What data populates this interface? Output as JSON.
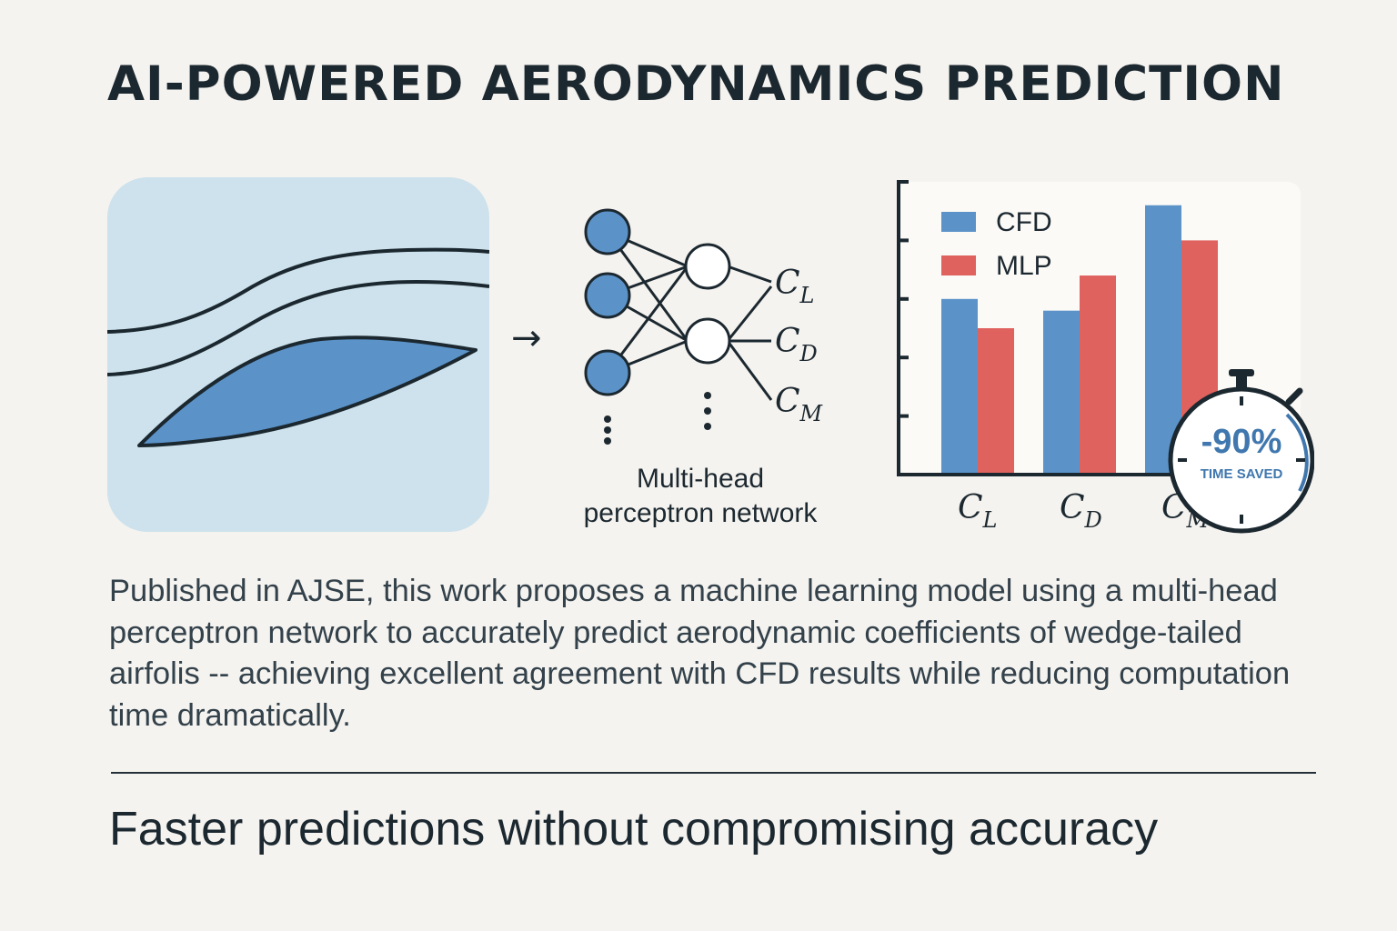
{
  "title": "AI-POWERED AERODYNAMICS PREDICTION",
  "icons": {
    "airfoil": "airfoil-streamlines-icon",
    "arrow": "right-arrow-icon",
    "network": "neural-network-icon",
    "stopwatch": "stopwatch-icon"
  },
  "network": {
    "caption_line1": "Multi-head",
    "caption_line2": "perceptron network",
    "outputs": [
      {
        "base": "C",
        "sub": "L"
      },
      {
        "base": "C",
        "sub": "D"
      },
      {
        "base": "C",
        "sub": "M"
      }
    ]
  },
  "chart_data": {
    "type": "bar",
    "categories": [
      {
        "base": "C",
        "sub": "L"
      },
      {
        "base": "C",
        "sub": "D"
      },
      {
        "base": "C",
        "sub": "M"
      }
    ],
    "series": [
      {
        "name": "CFD",
        "color": "#5b93c9",
        "values": [
          3.0,
          2.8,
          4.6
        ]
      },
      {
        "name": "MLP",
        "color": "#e0625f",
        "values": [
          2.5,
          3.4,
          4.0
        ]
      }
    ],
    "ylim": [
      0,
      5
    ],
    "yticks": 5,
    "legend": "top-left"
  },
  "badge": {
    "value": "-90%",
    "label": "TIME SAVED"
  },
  "description": "Published in AJSE, this work proposes a machine learning model using a multi-head perceptron network to accurately predict aerodynamic coefficients of wedge-tailed airfolis -- achieving excellent agreement with CFD results while reducing computation time dramatically.",
  "tagline": "Faster predictions without compromising accuracy",
  "colors": {
    "background": "#f5f3ef",
    "airfoil_panel": "#cde2ec",
    "airfoil_fill": "#5b93c9",
    "node_fill": "#5b93c9",
    "cfd": "#5b93c9",
    "mlp": "#e0625f",
    "text": "#1c2830"
  }
}
